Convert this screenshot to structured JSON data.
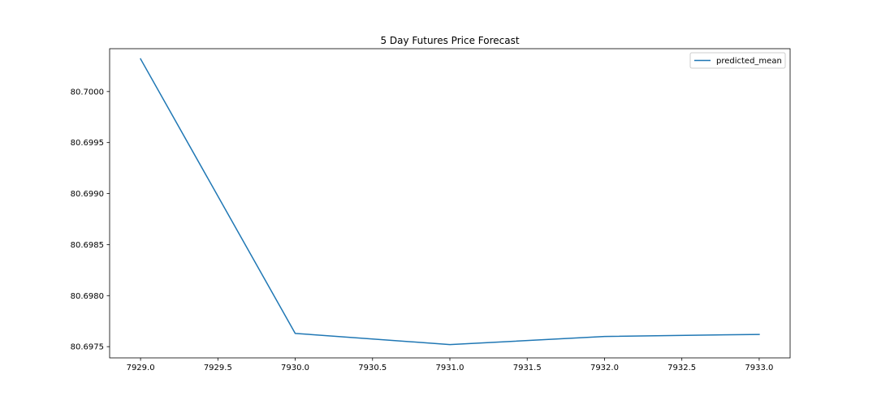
{
  "chart_data": {
    "type": "line",
    "title": "5 Day Futures Price Forecast",
    "xlabel": "",
    "ylabel": "",
    "xlim": [
      7928.8,
      7933.2
    ],
    "ylim": [
      80.69739,
      80.70042
    ],
    "x_ticks": [
      7929.0,
      7929.5,
      7930.0,
      7930.5,
      7931.0,
      7931.5,
      7932.0,
      7932.5,
      7933.0
    ],
    "x_tick_labels": [
      "7929.0",
      "7929.5",
      "7930.0",
      "7930.5",
      "7931.0",
      "7931.5",
      "7932.0",
      "7932.5",
      "7933.0"
    ],
    "y_ticks": [
      80.6975,
      80.698,
      80.6985,
      80.699,
      80.6995,
      80.7
    ],
    "y_tick_labels": [
      "80.6975",
      "80.6980",
      "80.6985",
      "80.6990",
      "80.6995",
      "80.7000"
    ],
    "grid": false,
    "legend_position": "top-right",
    "series": [
      {
        "name": "predicted_mean",
        "color": "#1f77b4",
        "x": [
          7929,
          7930,
          7931,
          7932,
          7933
        ],
        "y": [
          80.70032,
          80.69763,
          80.69752,
          80.6976,
          80.69762
        ]
      }
    ]
  }
}
